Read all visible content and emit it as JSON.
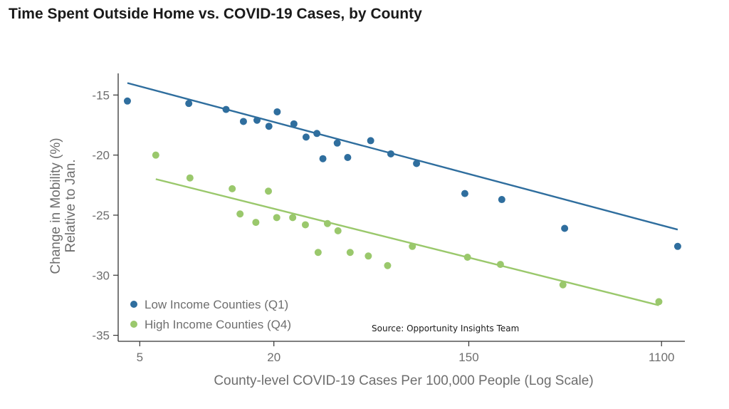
{
  "page": {
    "title": "Time Spent Outside Home vs. COVID-19 Cases, by County"
  },
  "chart_data": {
    "type": "scatter",
    "title": "Time Spent Outside Home vs. COVID-19 Cases, by County",
    "xlabel": "County-level COVID-19 Cases Per 100,000 People (Log Scale)",
    "ylabel_lines": [
      "Change in Mobility (%)",
      "Relative to Jan."
    ],
    "x_scale": "log",
    "xlim": [
      4,
      1400
    ],
    "ylim": [
      -35.5,
      -13.2
    ],
    "x_ticks": [
      5,
      20,
      150,
      1100
    ],
    "x_tick_labels": [
      "5",
      "20",
      "150",
      "1100"
    ],
    "y_ticks": [
      -15,
      -20,
      -25,
      -30,
      -35
    ],
    "y_tick_labels": [
      "-15",
      "-20",
      "-25",
      "-30",
      "-35"
    ],
    "grid": false,
    "legend_position": "bottom-left",
    "annotation": "Source: Opportunity Insights Team",
    "series": [
      {
        "name": "Low Income Counties (Q1)",
        "color": "#2f6e9e",
        "points": [
          [
            4.4,
            -15.5
          ],
          [
            8.3,
            -15.7
          ],
          [
            12.2,
            -16.2
          ],
          [
            14.6,
            -17.2
          ],
          [
            16.8,
            -17.1
          ],
          [
            19.0,
            -17.6
          ],
          [
            20.7,
            -16.4
          ],
          [
            24.6,
            -17.4
          ],
          [
            27.9,
            -18.5
          ],
          [
            31.2,
            -18.2
          ],
          [
            33.2,
            -20.3
          ],
          [
            38.5,
            -19.0
          ],
          [
            42.9,
            -20.2
          ],
          [
            54.4,
            -18.8
          ],
          [
            67.0,
            -19.9
          ],
          [
            87.4,
            -20.7
          ],
          [
            144.0,
            -23.2
          ],
          [
            211.0,
            -23.7
          ],
          [
            404.0,
            -26.1
          ],
          [
            1300.0,
            -27.6
          ]
        ],
        "fit": {
          "x": [
            4.4,
            1300.0
          ],
          "y": [
            -14.0,
            -26.2
          ]
        }
      },
      {
        "name": "High Income Counties (Q4)",
        "color": "#9ac86c",
        "points": [
          [
            5.9,
            -20.0
          ],
          [
            8.4,
            -21.9
          ],
          [
            13.0,
            -22.8
          ],
          [
            18.9,
            -23.0
          ],
          [
            14.1,
            -24.9
          ],
          [
            16.6,
            -25.6
          ],
          [
            20.6,
            -25.2
          ],
          [
            24.3,
            -25.2
          ],
          [
            27.7,
            -25.8
          ],
          [
            31.6,
            -28.1
          ],
          [
            34.8,
            -25.7
          ],
          [
            38.8,
            -26.3
          ],
          [
            44.0,
            -28.1
          ],
          [
            53.1,
            -28.4
          ],
          [
            64.8,
            -29.2
          ],
          [
            83.7,
            -27.6
          ],
          [
            148.0,
            -28.5
          ],
          [
            208.0,
            -29.1
          ],
          [
            397.0,
            -30.8
          ],
          [
            1070.0,
            -32.2
          ]
        ],
        "fit": {
          "x": [
            5.9,
            1070.0
          ],
          "y": [
            -22.0,
            -32.5
          ]
        }
      }
    ]
  }
}
